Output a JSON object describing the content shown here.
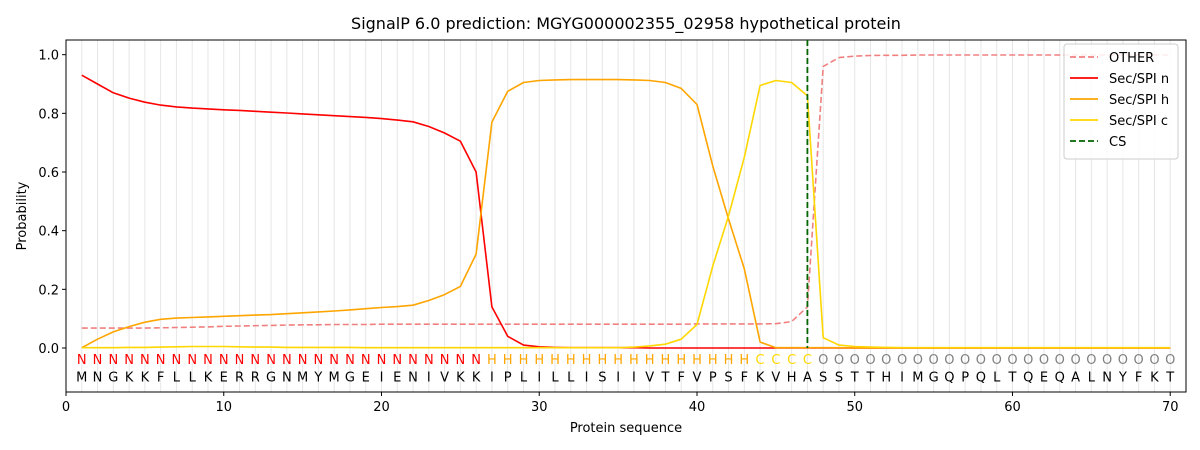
{
  "chart_data": {
    "type": "line",
    "title": "SignalP 6.0 prediction: MGYG000002355_02958 hypothetical protein",
    "xlabel": "Protein sequence",
    "ylabel": "Probability",
    "xlim": [
      0,
      71
    ],
    "ylim": [
      -0.15,
      1.05
    ],
    "xticks": [
      0,
      10,
      20,
      30,
      40,
      50,
      60,
      70
    ],
    "yticks": [
      0.0,
      0.2,
      0.4,
      0.6,
      0.8,
      1.0
    ],
    "x_tick_labels": [
      "0",
      "10",
      "20",
      "30",
      "40",
      "50",
      "60",
      "70"
    ],
    "y_tick_labels": [
      "0.0",
      "0.2",
      "0.4",
      "0.6",
      "0.8",
      "1.0"
    ],
    "legend_position": "upper-right",
    "sequence": "MNGKKFLLKERRGNMYMGEIENIVKKIPLILLISIIVTFVPSFKVHASSTTHIMGQPQLTQEQALNYFKT",
    "region_labels": "NNNNNNNNNNNNNNNNNNNNNNNNNNHHHHHHHHHHHHHHHHHCCCCOOOOOOOOOOOOOOOOOOOOOOO",
    "region_colors": {
      "N": "#ff0000",
      "H": "#ffa500",
      "C": "#ffd700",
      "O": "#808080"
    },
    "cs_position": 47,
    "legend": [
      {
        "name": "OTHER",
        "color": "#f08080",
        "dash": true
      },
      {
        "name": "Sec/SPI n",
        "color": "#ff0000",
        "dash": false
      },
      {
        "name": "Sec/SPI h",
        "color": "#ffa500",
        "dash": false
      },
      {
        "name": "Sec/SPI c",
        "color": "#ffd700",
        "dash": false
      },
      {
        "name": "CS",
        "color": "#006400",
        "dash": true
      }
    ],
    "series": [
      {
        "name": "OTHER",
        "color": "#f08080",
        "dash": true,
        "values": [
          0.068,
          0.068,
          0.068,
          0.068,
          0.068,
          0.069,
          0.07,
          0.071,
          0.072,
          0.074,
          0.075,
          0.076,
          0.077,
          0.078,
          0.079,
          0.079,
          0.08,
          0.08,
          0.08,
          0.081,
          0.081,
          0.081,
          0.081,
          0.081,
          0.081,
          0.081,
          0.081,
          0.081,
          0.081,
          0.081,
          0.081,
          0.081,
          0.081,
          0.081,
          0.081,
          0.081,
          0.081,
          0.081,
          0.081,
          0.082,
          0.082,
          0.082,
          0.082,
          0.082,
          0.083,
          0.09,
          0.14,
          0.96,
          0.99,
          0.995,
          0.997,
          0.998,
          0.998,
          0.999,
          0.999,
          0.999,
          0.999,
          0.999,
          0.999,
          0.999,
          0.999,
          0.999,
          0.999,
          0.999,
          0.999,
          0.999,
          0.999,
          0.999,
          0.999,
          0.999
        ]
      },
      {
        "name": "Sec/SPI n",
        "color": "#ff0000",
        "dash": false,
        "values": [
          0.93,
          0.9,
          0.87,
          0.852,
          0.838,
          0.828,
          0.822,
          0.818,
          0.815,
          0.812,
          0.81,
          0.807,
          0.804,
          0.801,
          0.798,
          0.795,
          0.792,
          0.789,
          0.786,
          0.782,
          0.777,
          0.771,
          0.755,
          0.733,
          0.705,
          0.6,
          0.14,
          0.04,
          0.01,
          0.004,
          0.002,
          0.001,
          0.001,
          0.001,
          0.001,
          0.001,
          0,
          0,
          0,
          0,
          0,
          0,
          0,
          0,
          0,
          0,
          0,
          0,
          0,
          0,
          0,
          0,
          0,
          0,
          0,
          0,
          0,
          0,
          0,
          0,
          0,
          0,
          0,
          0,
          0,
          0,
          0,
          0,
          0,
          0
        ]
      },
      {
        "name": "Sec/SPI h",
        "color": "#ffa500",
        "dash": false,
        "values": [
          0.001,
          0.03,
          0.055,
          0.073,
          0.088,
          0.098,
          0.102,
          0.104,
          0.106,
          0.108,
          0.11,
          0.112,
          0.114,
          0.117,
          0.12,
          0.123,
          0.126,
          0.13,
          0.134,
          0.138,
          0.141,
          0.146,
          0.162,
          0.182,
          0.21,
          0.32,
          0.77,
          0.875,
          0.905,
          0.912,
          0.914,
          0.915,
          0.915,
          0.915,
          0.915,
          0.914,
          0.912,
          0.905,
          0.885,
          0.83,
          0.62,
          0.44,
          0.27,
          0.02,
          0.001,
          0.001,
          0.001,
          0.001,
          0.001,
          0,
          0,
          0,
          0,
          0,
          0,
          0,
          0,
          0,
          0,
          0,
          0,
          0,
          0,
          0,
          0,
          0,
          0,
          0,
          0,
          0
        ]
      },
      {
        "name": "Sec/SPI c",
        "color": "#ffd700",
        "dash": false,
        "values": [
          0.001,
          0.001,
          0.001,
          0.002,
          0.002,
          0.003,
          0.004,
          0.005,
          0.005,
          0.005,
          0.004,
          0.003,
          0.003,
          0.002,
          0.002,
          0.002,
          0.002,
          0.002,
          0.001,
          0.001,
          0.001,
          0.001,
          0.001,
          0.001,
          0.001,
          0.001,
          0.001,
          0.001,
          0.001,
          0.001,
          0.001,
          0.001,
          0.001,
          0.001,
          0.001,
          0.003,
          0.007,
          0.013,
          0.03,
          0.08,
          0.28,
          0.45,
          0.65,
          0.895,
          0.912,
          0.905,
          0.86,
          0.035,
          0.01,
          0.005,
          0.003,
          0.002,
          0.001,
          0.001,
          0.001,
          0.001,
          0.001,
          0.001,
          0.001,
          0.001,
          0.001,
          0.001,
          0.001,
          0.001,
          0.001,
          0.001,
          0.001,
          0.001,
          0.001,
          0.001
        ]
      }
    ]
  }
}
